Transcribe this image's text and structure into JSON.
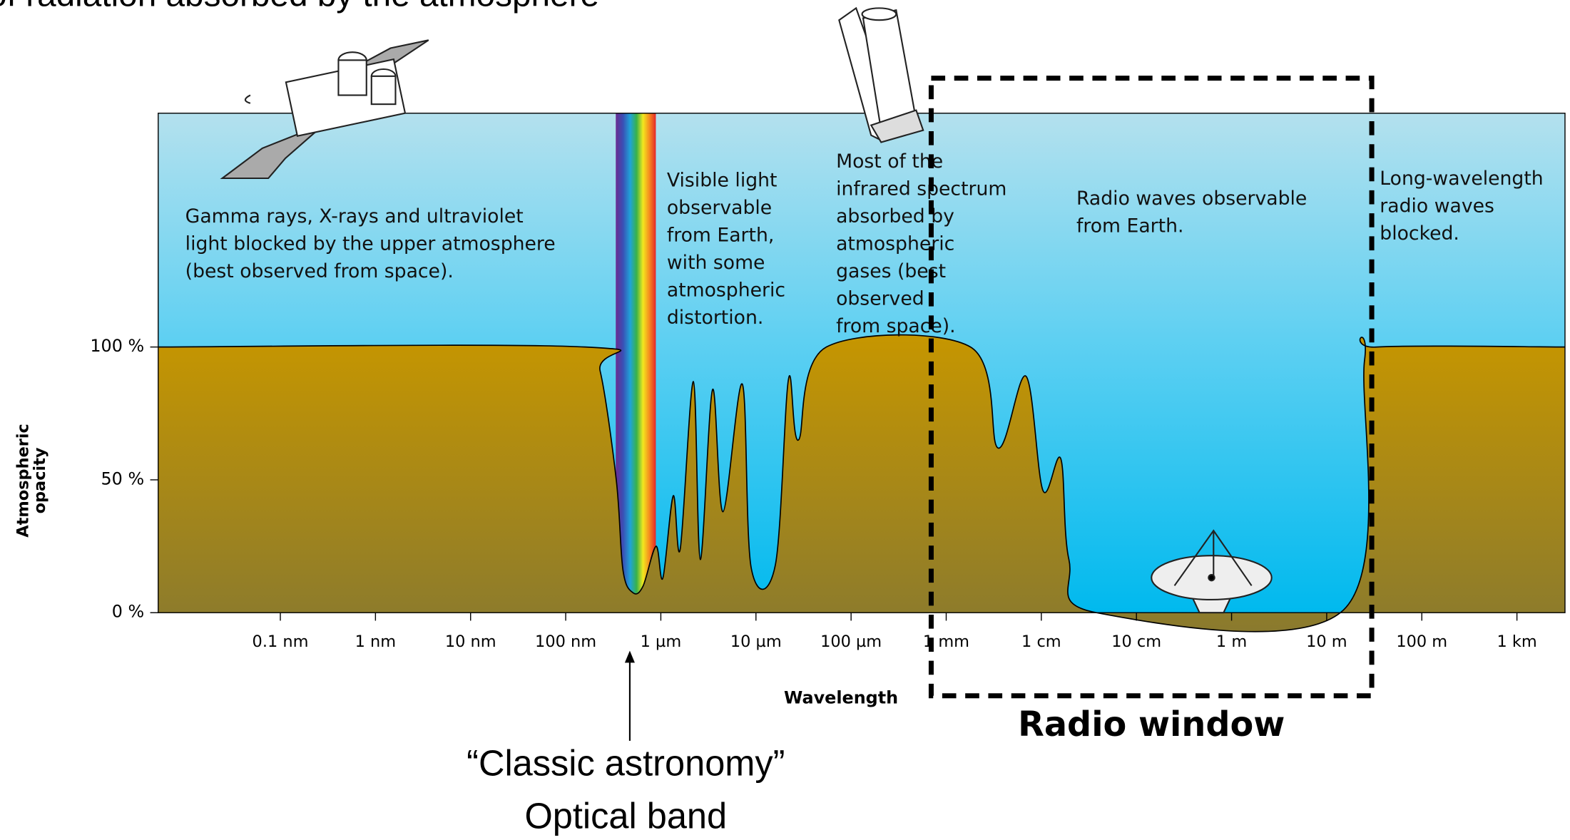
{
  "chart_data": {
    "type": "area",
    "title": "of radiation absorbed by the atmosphere",
    "x_label": "Wavelength",
    "y_label": [
      "Atmospheric",
      "opacity"
    ],
    "log_x": true,
    "xlim": [
      5.2e-12,
      3200
    ],
    "ylim": [
      0,
      188
    ],
    "xticks": [
      {
        "value": 1e-10,
        "label": "0.1 nm"
      },
      {
        "value": 1e-09,
        "label": "1 nm"
      },
      {
        "value": 1e-08,
        "label": "10 nm"
      },
      {
        "value": 1e-07,
        "label": "100 nm"
      },
      {
        "value": 1e-06,
        "label": "1 µm"
      },
      {
        "value": 1e-05,
        "label": "10 µm"
      },
      {
        "value": 0.0001,
        "label": "100 µm"
      },
      {
        "value": 0.001,
        "label": "1 mm"
      },
      {
        "value": 0.01,
        "label": "1 cm"
      },
      {
        "value": 0.1,
        "label": "10 cm"
      },
      {
        "value": 1,
        "label": "1 m"
      },
      {
        "value": 10,
        "label": "10 m"
      },
      {
        "value": 100,
        "label": "100 m"
      },
      {
        "value": 1000,
        "label": "1 km"
      }
    ],
    "yticks": [
      {
        "value": 0,
        "label": "0 %"
      },
      {
        "value": 50,
        "label": "50 %"
      },
      {
        "value": 100,
        "label": "100 %"
      }
    ],
    "x": [
      5.2e-12,
      1.6e-07,
      2.3e-07,
      3.4e-07,
      4e-07,
      5.1e-07,
      6.5e-07,
      8.9e-07,
      1.05e-06,
      1.35e-06,
      1.6e-06,
      2.2e-06,
      2.6e-06,
      3.5e-06,
      4.5e-06,
      7.2e-06,
      8.9e-06,
      1.6e-05,
      2.2e-05,
      2.8e-05,
      5.5e-05,
      0.0018,
      0.0035,
      0.0069,
      0.0104,
      0.016,
      0.0195,
      0.038,
      15,
      25,
      34,
      3200
    ],
    "values": [
      100,
      100,
      91,
      50,
      16,
      7.5,
      10,
      25,
      13,
      44,
      24,
      87,
      20,
      84,
      38,
      86,
      17,
      18,
      88,
      65,
      100,
      100,
      62,
      89,
      46,
      58,
      20,
      0,
      1,
      95,
      100,
      100
    ],
    "color": "#b38f10",
    "annotations": [
      [
        "Gamma rays, X-rays and ultraviolet",
        "light blocked by the upper atmosphere",
        "(best observed from space)."
      ],
      [
        "Visible light",
        "observable",
        "from Earth,",
        "with some",
        "atmospheric",
        "distortion."
      ],
      [
        "Most of the",
        "infrared spectrum",
        "absorbed by",
        "atmospheric",
        "gases (best",
        "observed",
        "from space)."
      ],
      [
        "Radio waves observable",
        "from Earth."
      ],
      [
        "Long-wavelength",
        "radio waves",
        "blocked."
      ]
    ],
    "window_label": "Radio window",
    "optical_label": [
      "“Classic astronomy”",
      "Optical band"
    ]
  }
}
